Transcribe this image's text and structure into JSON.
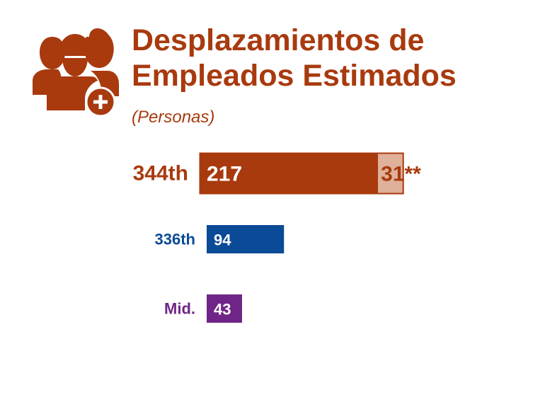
{
  "title_line1": "Desplazamientos de",
  "title_line2": "Empleados Estimados",
  "subtitle": "(Personas)",
  "icon": "employees-group-plus-icon",
  "colors": {
    "accent": "#a83a0e",
    "light_accent": "#dfb09a",
    "blue": "#0b4a96",
    "purple": "#6f2587"
  },
  "chart_data": {
    "type": "bar",
    "orientation": "horizontal",
    "stacked": true,
    "categories": [
      "344th",
      "336th",
      "Mid."
    ],
    "series": [
      {
        "values": [
          217,
          94,
          43
        ],
        "labels": [
          "217",
          "94",
          "43"
        ]
      },
      {
        "values": [
          31,
          0,
          0
        ],
        "labels": [
          "31**",
          "",
          ""
        ]
      }
    ],
    "category_colors": [
      "#a83a0e",
      "#0b4a96",
      "#6f2587"
    ],
    "secondary_color": "#dfb09a",
    "grid": false,
    "legend": "none"
  }
}
